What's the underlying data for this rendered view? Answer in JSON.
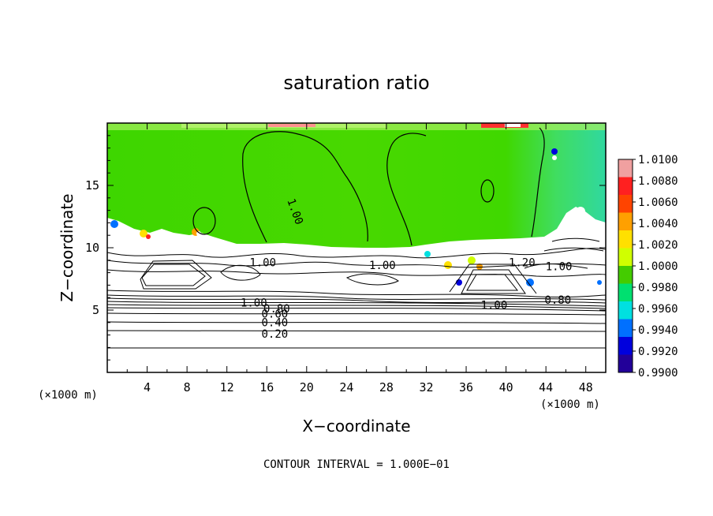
{
  "chart_data": {
    "type": "heatmap",
    "title": "saturation ratio",
    "xlabel": "X−coordinate",
    "ylabel": "Z−coordinate",
    "x_unit": "(×1000 m)",
    "z_unit": "(×1000 m)",
    "xlim": [
      0,
      50
    ],
    "ylim": [
      0,
      20
    ],
    "x_ticks": [
      4,
      8,
      12,
      16,
      20,
      24,
      28,
      32,
      36,
      40,
      44,
      48
    ],
    "y_ticks": [
      5,
      10,
      15
    ],
    "colorbar": {
      "min": 0.99,
      "max": 1.01,
      "ticks": [
        "1.0100",
        "1.0080",
        "1.0060",
        "1.0040",
        "1.0020",
        "1.0000",
        "0.9980",
        "0.9960",
        "0.9940",
        "0.9920",
        "0.9900"
      ],
      "colors": [
        "#f0a0a0",
        "#ff2020",
        "#ff4400",
        "#ffa000",
        "#ffe000",
        "#d0ff00",
        "#44cc00",
        "#00e070",
        "#00e0e0",
        "#0070ff",
        "#0000dd",
        "#220099"
      ]
    },
    "contour_labels": [
      {
        "text": "1.00",
        "x": 18.5,
        "z": 12.8
      },
      {
        "text": "1.00",
        "x": 15.6,
        "z": 8.5
      },
      {
        "text": "1.00",
        "x": 27.6,
        "z": 8.3
      },
      {
        "text": "1.20",
        "x": 41.6,
        "z": 8.5
      },
      {
        "text": "1.00",
        "x": 45.3,
        "z": 8.2
      },
      {
        "text": "1.00",
        "x": 14.7,
        "z": 5.3
      },
      {
        "text": "0.80",
        "x": 17.0,
        "z": 4.8
      },
      {
        "text": "0.60",
        "x": 16.8,
        "z": 4.4
      },
      {
        "text": "0.40",
        "x": 16.8,
        "z": 3.7
      },
      {
        "text": "0.20",
        "x": 16.8,
        "z": 2.8
      },
      {
        "text": "1.00",
        "x": 38.8,
        "z": 5.1
      },
      {
        "text": "0.80",
        "x": 45.2,
        "z": 5.5
      }
    ],
    "footer": "CONTOUR INTERVAL = 1.000E−01"
  }
}
